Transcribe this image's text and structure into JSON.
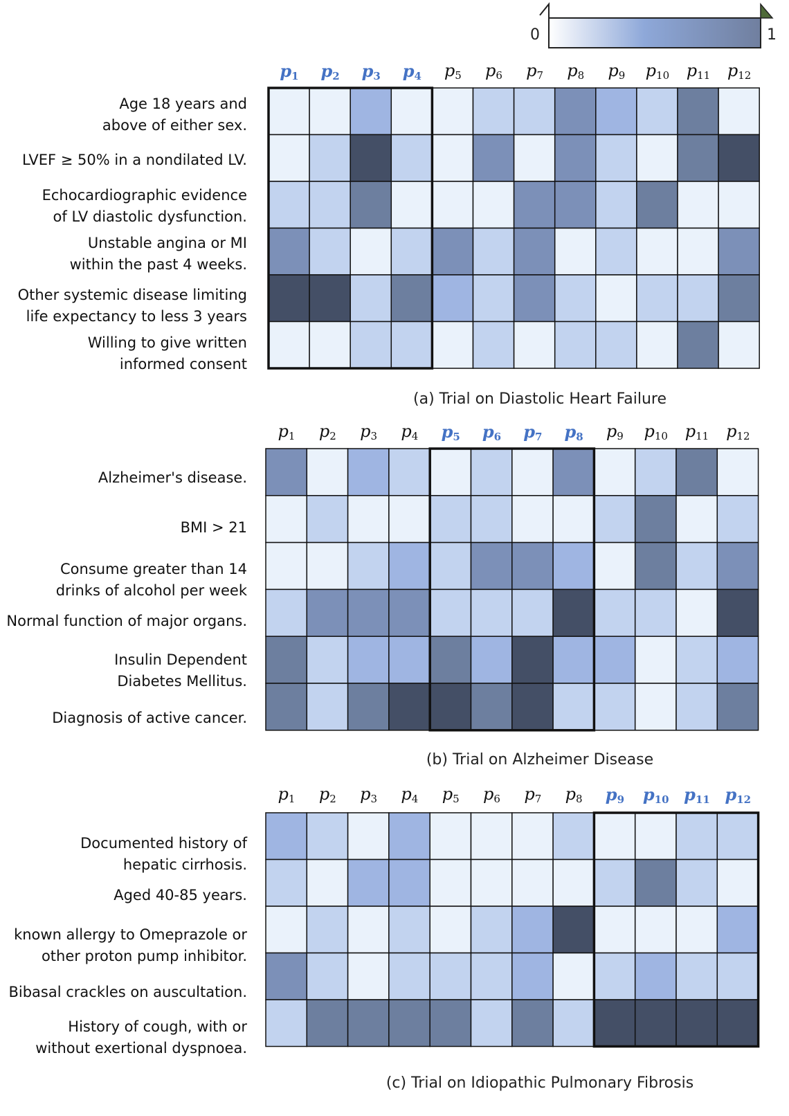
{
  "colorbar": {
    "min_label": "0",
    "max_label": "1",
    "colors": [
      "#ffffff",
      "#8ea8d9",
      "#707f9f"
    ]
  },
  "palette": [
    "#eaf2fb",
    "#c2d3ef",
    "#9fb5e2",
    "#7c90b8",
    "#6d7f9f",
    "#444f66"
  ],
  "chart_data": [
    {
      "type": "heatmap",
      "title": "(a) Trial on Diastolic Heart Failure",
      "columns": [
        "1",
        "2",
        "3",
        "4",
        "5",
        "6",
        "7",
        "8",
        "9",
        "10",
        "11",
        "12"
      ],
      "column_prefix": "p",
      "highlight_columns": [
        0,
        1,
        2,
        3
      ],
      "rows": [
        "Age 18 years and\nabove of either sex.",
        "LVEF ≥ 50% in a nondilated LV.",
        "Echocardiographic evidence\nof LV diastolic dysfunction.",
        "Unstable angina or MI\nwithin the past 4 weeks.",
        "Other systemic disease limiting\nlife expectancy to less 3 years",
        "Willing to give written\ninformed consent"
      ],
      "values": [
        [
          0.05,
          0.05,
          0.45,
          0.05,
          0.05,
          0.25,
          0.25,
          0.65,
          0.45,
          0.25,
          0.75,
          0.05
        ],
        [
          0.05,
          0.25,
          0.95,
          0.25,
          0.05,
          0.65,
          0.05,
          0.65,
          0.25,
          0.05,
          0.75,
          0.95
        ],
        [
          0.25,
          0.25,
          0.75,
          0.05,
          0.05,
          0.05,
          0.65,
          0.65,
          0.25,
          0.75,
          0.05,
          0.05
        ],
        [
          0.65,
          0.25,
          0.05,
          0.25,
          0.65,
          0.25,
          0.65,
          0.05,
          0.25,
          0.05,
          0.05,
          0.65
        ],
        [
          0.95,
          0.95,
          0.25,
          0.75,
          0.45,
          0.25,
          0.65,
          0.25,
          0.05,
          0.25,
          0.25,
          0.75
        ],
        [
          0.05,
          0.05,
          0.25,
          0.25,
          0.05,
          0.25,
          0.05,
          0.25,
          0.25,
          0.05,
          0.75,
          0.05
        ]
      ],
      "colorbar_range": [
        0,
        1
      ]
    },
    {
      "type": "heatmap",
      "title": "(b) Trial on Alzheimer Disease",
      "columns": [
        "1",
        "2",
        "3",
        "4",
        "5",
        "6",
        "7",
        "8",
        "9",
        "10",
        "11",
        "12"
      ],
      "column_prefix": "p",
      "highlight_columns": [
        4,
        5,
        6,
        7
      ],
      "rows": [
        "Alzheimer's disease.",
        "BMI > 21",
        "Consume greater than 14\ndrinks of alcohol per week",
        "Normal function of major organs.",
        "Insulin Dependent\nDiabetes Mellitus.",
        "Diagnosis of active cancer."
      ],
      "values": [
        [
          0.65,
          0.05,
          0.45,
          0.25,
          0.05,
          0.25,
          0.05,
          0.65,
          0.05,
          0.25,
          0.75,
          0.05
        ],
        [
          0.05,
          0.25,
          0.05,
          0.05,
          0.25,
          0.25,
          0.05,
          0.05,
          0.25,
          0.75,
          0.05,
          0.25
        ],
        [
          0.05,
          0.05,
          0.25,
          0.45,
          0.25,
          0.65,
          0.65,
          0.45,
          0.05,
          0.75,
          0.25,
          0.65
        ],
        [
          0.25,
          0.65,
          0.65,
          0.65,
          0.25,
          0.25,
          0.25,
          0.95,
          0.25,
          0.25,
          0.05,
          0.95
        ],
        [
          0.75,
          0.25,
          0.45,
          0.45,
          0.75,
          0.45,
          0.95,
          0.45,
          0.45,
          0.05,
          0.25,
          0.45
        ],
        [
          0.75,
          0.25,
          0.75,
          0.95,
          0.95,
          0.75,
          0.95,
          0.25,
          0.25,
          0.05,
          0.25,
          0.75
        ]
      ],
      "colorbar_range": [
        0,
        1
      ]
    },
    {
      "type": "heatmap",
      "title": "(c) Trial on Idiopathic Pulmonary Fibrosis",
      "columns": [
        "1",
        "2",
        "3",
        "4",
        "5",
        "6",
        "7",
        "8",
        "9",
        "10",
        "11",
        "12"
      ],
      "column_prefix": "p",
      "highlight_columns": [
        8,
        9,
        10,
        11
      ],
      "rows": [
        "Documented history  of\nhepatic cirrhosis.",
        "Aged 40-85 years.",
        "known allergy to Omeprazole or\nother proton pump inhibitor.",
        "Bibasal crackles on auscultation.",
        "History of cough, with or\nwithout exertional dyspnoea."
      ],
      "values": [
        [
          0.45,
          0.25,
          0.05,
          0.45,
          0.05,
          0.05,
          0.05,
          0.25,
          0.05,
          0.05,
          0.25,
          0.25
        ],
        [
          0.25,
          0.05,
          0.45,
          0.45,
          0.05,
          0.05,
          0.05,
          0.05,
          0.25,
          0.75,
          0.25,
          0.05
        ],
        [
          0.05,
          0.25,
          0.05,
          0.25,
          0.05,
          0.25,
          0.45,
          0.95,
          0.05,
          0.05,
          0.05,
          0.45
        ],
        [
          0.65,
          0.25,
          0.05,
          0.25,
          0.25,
          0.25,
          0.45,
          0.05,
          0.25,
          0.45,
          0.25,
          0.25
        ],
        [
          0.25,
          0.75,
          0.75,
          0.75,
          0.75,
          0.25,
          0.75,
          0.25,
          0.95,
          0.95,
          0.95,
          0.95
        ]
      ],
      "colorbar_range": [
        0,
        1
      ]
    }
  ]
}
